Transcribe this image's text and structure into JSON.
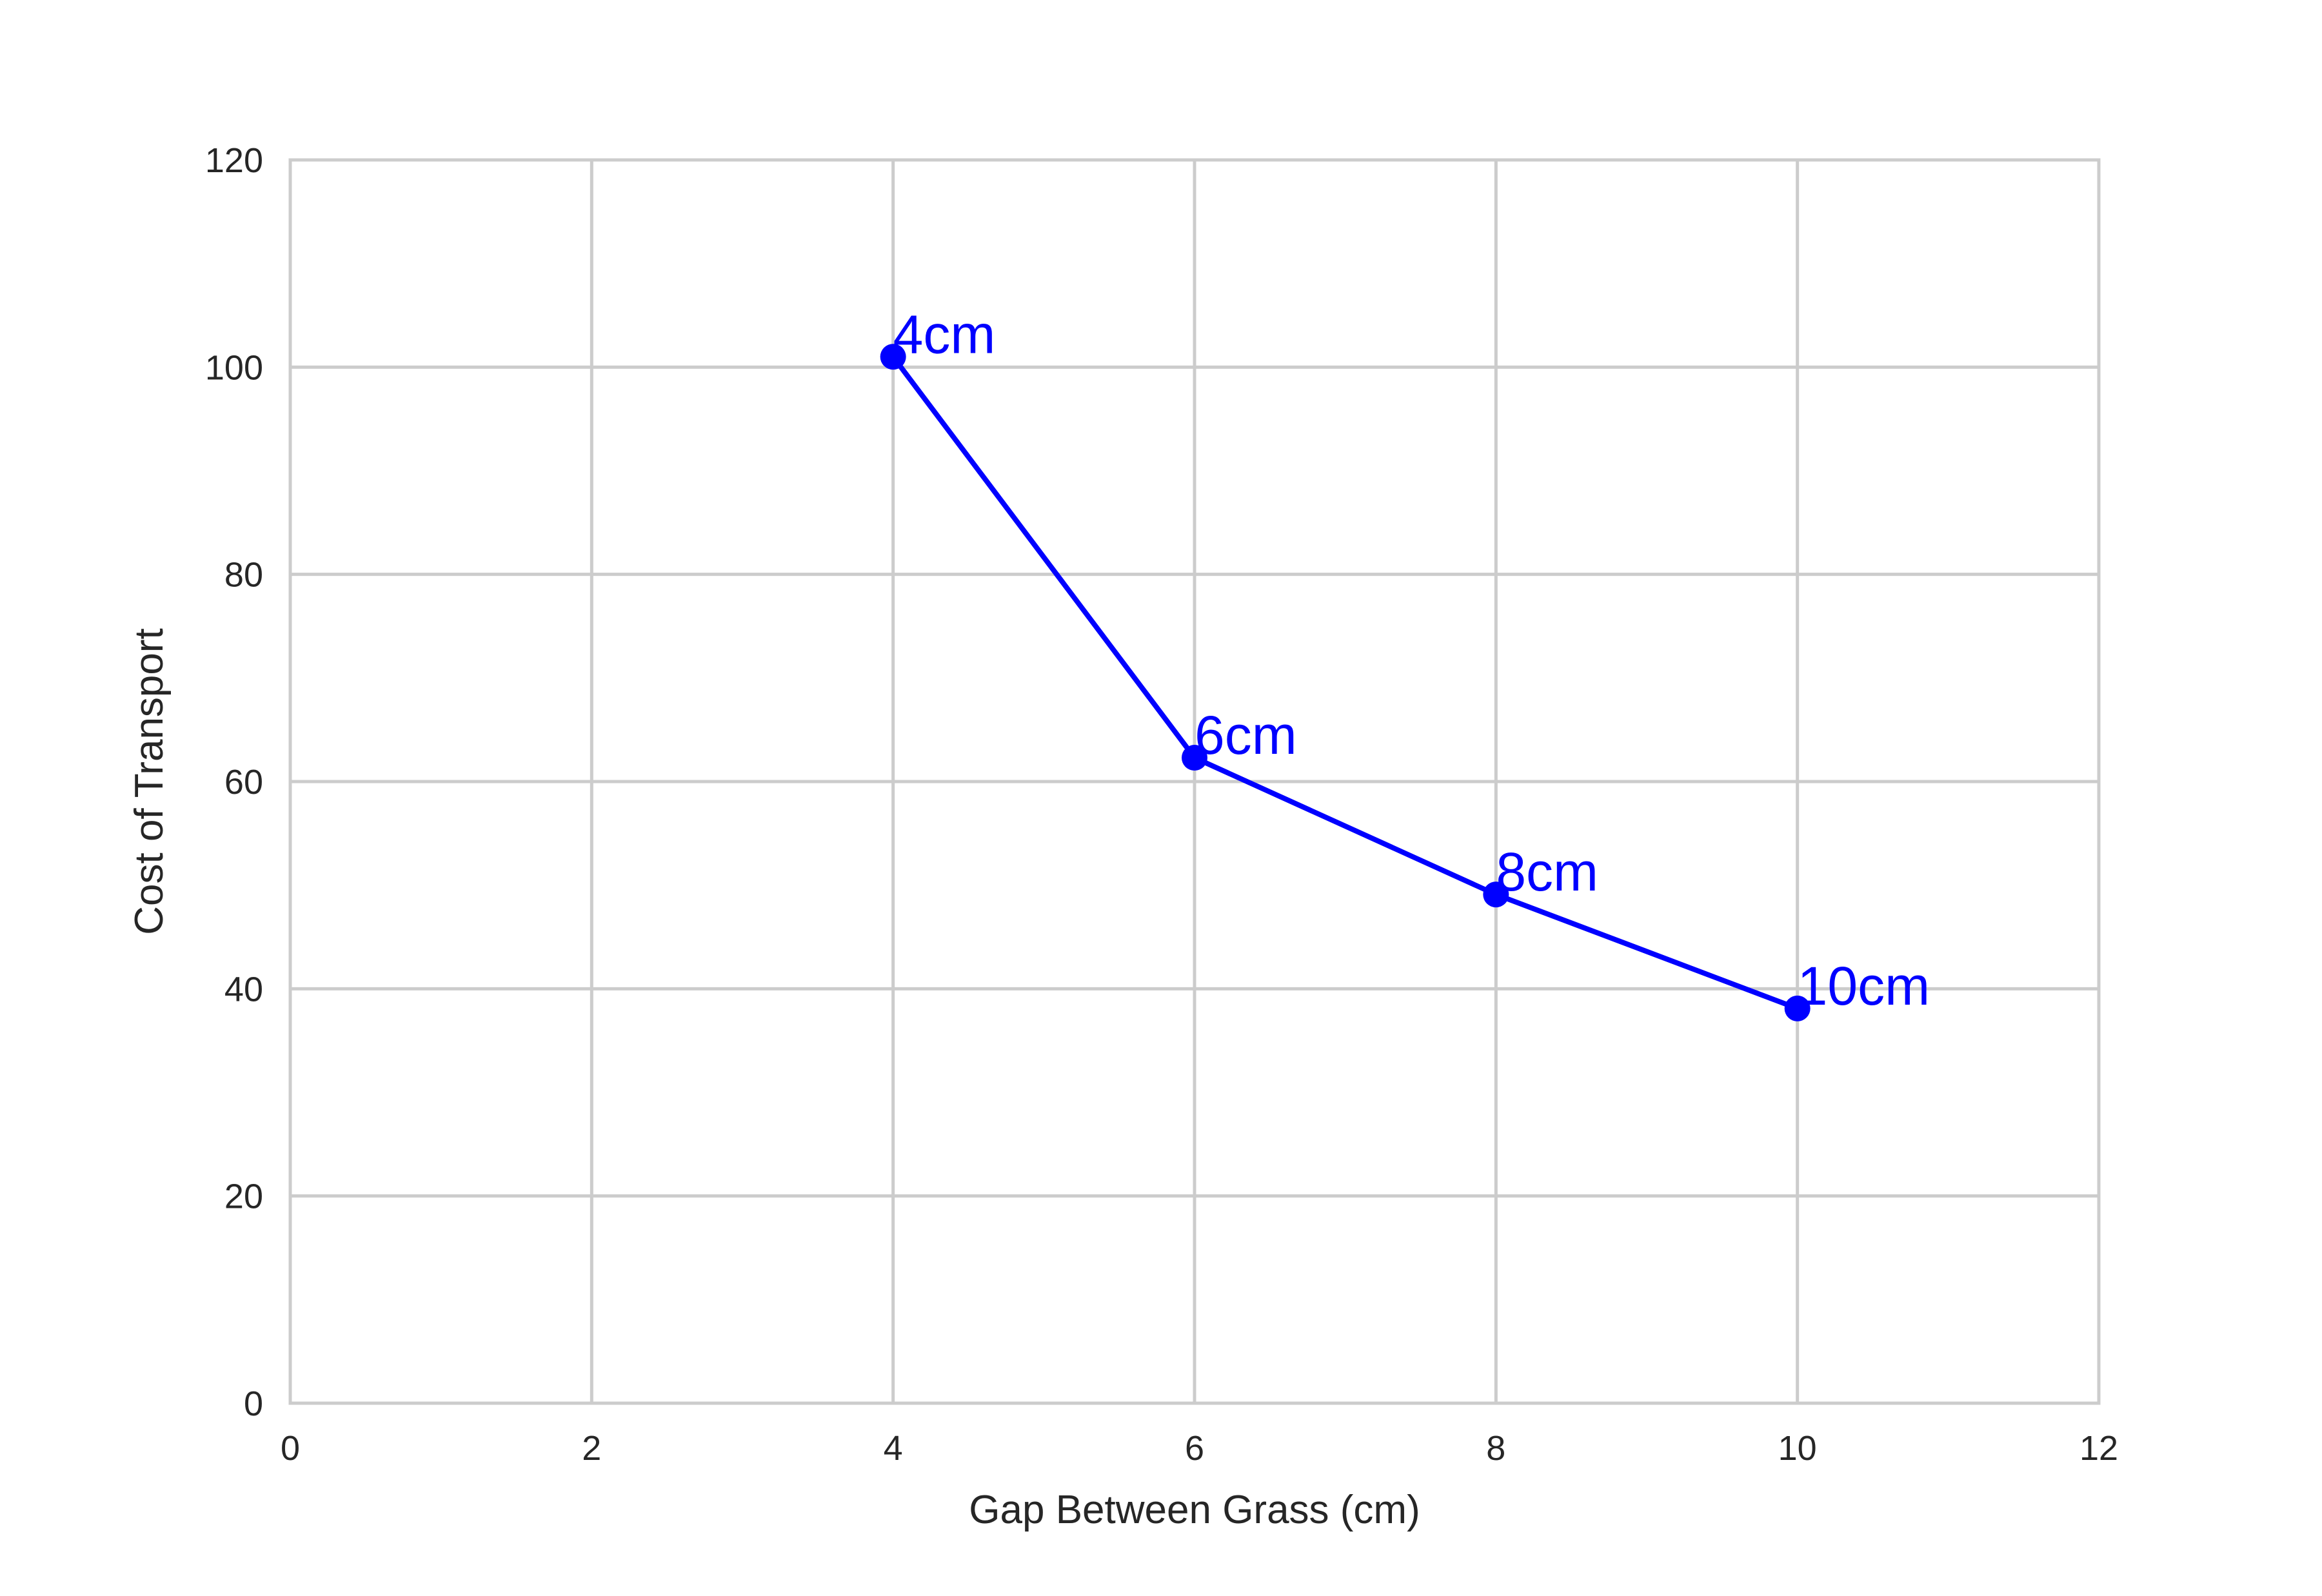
{
  "colors": {
    "series": "#0000ff",
    "grid": "#cccccc",
    "frame": "#cccccc",
    "text": "#262626",
    "background": "#ffffff"
  },
  "chart_data": {
    "type": "line",
    "title": "",
    "xlabel": "Gap Between Grass (cm)",
    "ylabel": "Cost of Transport",
    "xlim": [
      0,
      12
    ],
    "ylim": [
      0,
      120
    ],
    "xticks": [
      0,
      2,
      4,
      6,
      8,
      10,
      12
    ],
    "yticks": [
      0,
      20,
      40,
      60,
      80,
      100,
      120
    ],
    "grid": true,
    "legend": "none",
    "series": [
      {
        "x": [
          4,
          6,
          8,
          10
        ],
        "y": [
          101,
          62.3,
          49.1,
          38.1
        ],
        "labels": [
          "4cm",
          "6cm",
          "8cm",
          "10cm"
        ],
        "marker": "circle",
        "color": "#0000ff"
      }
    ]
  }
}
